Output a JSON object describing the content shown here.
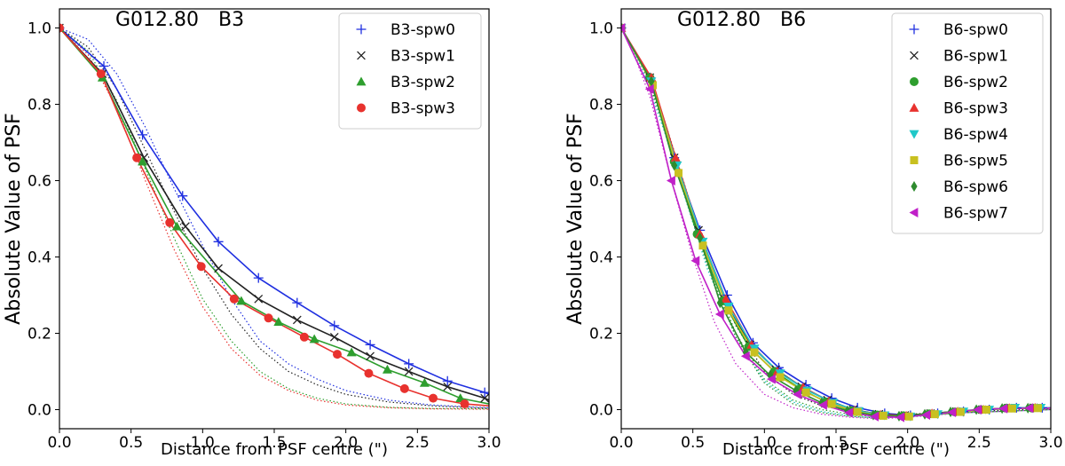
{
  "figure": {
    "description_free": true
  },
  "chart_data": [
    {
      "type": "line",
      "title_field": "G012.80",
      "title_band": "B3",
      "xlabel": "Distance from PSF centre (\")",
      "ylabel": "Absolute Value of PSF",
      "xlim": [
        0.0,
        3.0
      ],
      "ylim": [
        -0.05,
        1.05
      ],
      "xticks": [
        0.0,
        0.5,
        1.0,
        1.5,
        2.0,
        2.5,
        3.0
      ],
      "xtick_labels": [
        "0.0",
        "0.5",
        "1.0",
        "1.5",
        "2.0",
        "2.5",
        "3.0"
      ],
      "yticks": [
        0.0,
        0.2,
        0.4,
        0.6,
        0.8,
        1.0
      ],
      "ytick_labels": [
        "0.0",
        "0.2",
        "0.4",
        "0.6",
        "0.8",
        "1.0"
      ],
      "legend_position": "top-right",
      "series": [
        {
          "name": "B3-spw0",
          "color": "#1f2fe0",
          "marker": "plus",
          "x": [
            0.0,
            0.31,
            0.58,
            0.86,
            1.11,
            1.39,
            1.66,
            1.92,
            2.17,
            2.44,
            2.71,
            2.97,
            3.0
          ],
          "values": [
            1.0,
            0.9,
            0.72,
            0.56,
            0.44,
            0.345,
            0.28,
            0.22,
            0.17,
            0.12,
            0.075,
            0.045,
            0.04
          ],
          "dotted_x": [
            0.0,
            0.2,
            0.4,
            0.6,
            0.8,
            1.0,
            1.2,
            1.4,
            1.6,
            1.8,
            2.0,
            2.3,
            2.6,
            3.0
          ],
          "dotted_values": [
            1.0,
            0.97,
            0.88,
            0.74,
            0.58,
            0.43,
            0.29,
            0.18,
            0.12,
            0.08,
            0.05,
            0.025,
            0.012,
            0.005
          ]
        },
        {
          "name": "B3-spw1",
          "color": "#222222",
          "marker": "x",
          "x": [
            0.0,
            0.3,
            0.59,
            0.88,
            1.11,
            1.39,
            1.66,
            1.92,
            2.17,
            2.44,
            2.71,
            2.97,
            3.0
          ],
          "values": [
            1.0,
            0.88,
            0.66,
            0.48,
            0.37,
            0.29,
            0.235,
            0.19,
            0.14,
            0.1,
            0.06,
            0.03,
            0.025
          ],
          "dotted_x": [
            0.0,
            0.2,
            0.4,
            0.6,
            0.8,
            1.0,
            1.2,
            1.4,
            1.6,
            1.8,
            2.0,
            2.3,
            2.6,
            3.0
          ],
          "dotted_values": [
            1.0,
            0.95,
            0.84,
            0.68,
            0.52,
            0.37,
            0.25,
            0.16,
            0.1,
            0.065,
            0.04,
            0.02,
            0.01,
            0.004
          ]
        },
        {
          "name": "B3-spw2",
          "color": "#2e9e2e",
          "marker": "triangle-up",
          "x": [
            0.0,
            0.3,
            0.58,
            0.82,
            1.27,
            1.53,
            1.78,
            2.04,
            2.29,
            2.55,
            2.8,
            3.0
          ],
          "values": [
            1.0,
            0.87,
            0.65,
            0.48,
            0.285,
            0.23,
            0.185,
            0.15,
            0.105,
            0.07,
            0.03,
            0.015
          ],
          "dotted_x": [
            0.0,
            0.2,
            0.4,
            0.6,
            0.8,
            1.0,
            1.2,
            1.4,
            1.6,
            1.8,
            2.0,
            2.3,
            2.6,
            3.0
          ],
          "dotted_values": [
            1.0,
            0.94,
            0.81,
            0.63,
            0.45,
            0.29,
            0.18,
            0.1,
            0.055,
            0.03,
            0.015,
            0.006,
            0.003,
            0.002
          ]
        },
        {
          "name": "B3-spw3",
          "color": "#e8322e",
          "marker": "circle",
          "x": [
            0.0,
            0.29,
            0.54,
            0.77,
            0.99,
            1.22,
            1.46,
            1.71,
            1.94,
            2.16,
            2.41,
            2.61,
            2.83,
            3.0
          ],
          "values": [
            1.0,
            0.88,
            0.66,
            0.49,
            0.375,
            0.29,
            0.24,
            0.19,
            0.145,
            0.095,
            0.055,
            0.03,
            0.015,
            0.01
          ],
          "dotted_x": [
            0.0,
            0.2,
            0.4,
            0.6,
            0.8,
            1.0,
            1.2,
            1.4,
            1.6,
            1.8,
            2.0,
            2.3,
            2.6,
            3.0
          ],
          "dotted_values": [
            1.0,
            0.93,
            0.79,
            0.6,
            0.42,
            0.27,
            0.16,
            0.09,
            0.05,
            0.025,
            0.012,
            0.005,
            0.002,
            0.001
          ]
        }
      ]
    },
    {
      "type": "line",
      "title_field": "G012.80",
      "title_band": "B6",
      "xlabel": "Distance from PSF centre (\")",
      "ylabel": "Absolute Value of PSF",
      "xlim": [
        0.0,
        3.0
      ],
      "ylim": [
        -0.05,
        1.05
      ],
      "xticks": [
        0.0,
        0.5,
        1.0,
        1.5,
        2.0,
        2.5,
        3.0
      ],
      "xtick_labels": [
        "0.0",
        "0.5",
        "1.0",
        "1.5",
        "2.0",
        "2.5",
        "3.0"
      ],
      "yticks": [
        0.0,
        0.2,
        0.4,
        0.6,
        0.8,
        1.0
      ],
      "ytick_labels": [
        "0.0",
        "0.2",
        "0.4",
        "0.6",
        "0.8",
        "1.0"
      ],
      "legend_position": "top-right",
      "series": [
        {
          "name": "B6-spw0",
          "color": "#1f2fe0",
          "marker": "plus",
          "x": [
            0.0,
            0.2,
            0.37,
            0.55,
            0.74,
            0.92,
            1.1,
            1.29,
            1.47,
            1.65,
            1.84,
            2.02,
            2.21,
            2.39,
            2.57,
            2.76,
            2.94,
            3.0
          ],
          "values": [
            1.0,
            0.87,
            0.66,
            0.47,
            0.3,
            0.175,
            0.11,
            0.065,
            0.03,
            0.005,
            -0.01,
            -0.015,
            -0.01,
            -0.005,
            0.0,
            0.005,
            0.005,
            0.005
          ],
          "dotted_x": [],
          "dotted_values": []
        },
        {
          "name": "B6-spw1",
          "color": "#222222",
          "marker": "x",
          "x": [
            0.0,
            0.2,
            0.37,
            0.54,
            0.72,
            0.9,
            1.08,
            1.26,
            1.44,
            1.62,
            1.8,
            1.98,
            2.16,
            2.34,
            2.52,
            2.7,
            2.88,
            3.0
          ],
          "values": [
            1.0,
            0.87,
            0.66,
            0.47,
            0.29,
            0.17,
            0.105,
            0.06,
            0.025,
            0.0,
            -0.012,
            -0.015,
            -0.01,
            -0.005,
            0.0,
            0.004,
            0.005,
            0.005
          ],
          "dotted_x": [
            0.0,
            0.15,
            0.3,
            0.45,
            0.6,
            0.8,
            1.0,
            1.2,
            1.4,
            1.6,
            1.8,
            2.0,
            2.4,
            3.0
          ],
          "dotted_values": [
            1.0,
            0.9,
            0.76,
            0.58,
            0.4,
            0.22,
            0.1,
            0.04,
            0.01,
            -0.005,
            -0.015,
            -0.012,
            -0.005,
            0.002
          ]
        },
        {
          "name": "B6-spw2",
          "color": "#2e9e2e",
          "marker": "circle",
          "x": [
            0.0,
            0.2,
            0.37,
            0.53,
            0.71,
            0.89,
            1.07,
            1.25,
            1.43,
            1.61,
            1.79,
            1.97,
            2.15,
            2.33,
            2.51,
            2.69,
            2.87,
            3.0
          ],
          "values": [
            1.0,
            0.87,
            0.65,
            0.46,
            0.285,
            0.165,
            0.1,
            0.055,
            0.02,
            -0.003,
            -0.014,
            -0.016,
            -0.011,
            -0.006,
            0.0,
            0.004,
            0.004,
            0.004
          ],
          "dotted_x": [
            0.0,
            0.15,
            0.3,
            0.45,
            0.6,
            0.8,
            1.0,
            1.2,
            1.4,
            1.6,
            1.8,
            2.0,
            2.4,
            3.0
          ],
          "dotted_values": [
            1.0,
            0.9,
            0.75,
            0.57,
            0.39,
            0.2,
            0.08,
            0.025,
            0.0,
            -0.012,
            -0.02,
            -0.018,
            -0.008,
            0.0
          ]
        },
        {
          "name": "B6-spw3",
          "color": "#e8322e",
          "marker": "triangle-up",
          "x": [
            0.0,
            0.21,
            0.38,
            0.55,
            0.73,
            0.91,
            1.09,
            1.27,
            1.45,
            1.63,
            1.81,
            1.99,
            2.17,
            2.35,
            2.53,
            2.71,
            2.89,
            3.0
          ],
          "values": [
            1.0,
            0.87,
            0.66,
            0.46,
            0.29,
            0.17,
            0.1,
            0.058,
            0.022,
            -0.002,
            -0.013,
            -0.016,
            -0.01,
            -0.005,
            0.0,
            0.004,
            0.005,
            0.005
          ],
          "dotted_x": [],
          "dotted_values": []
        },
        {
          "name": "B6-spw4",
          "color": "#20c8c8",
          "marker": "triangle-down",
          "x": [
            0.0,
            0.21,
            0.39,
            0.57,
            0.75,
            0.93,
            1.11,
            1.3,
            1.48,
            1.66,
            1.84,
            2.02,
            2.21,
            2.39,
            2.57,
            2.75,
            2.93,
            3.0
          ],
          "values": [
            1.0,
            0.86,
            0.64,
            0.44,
            0.27,
            0.16,
            0.095,
            0.05,
            0.018,
            -0.004,
            -0.015,
            -0.018,
            -0.012,
            -0.005,
            0.0,
            0.005,
            0.005,
            0.005
          ],
          "dotted_x": [
            0.0,
            0.15,
            0.3,
            0.45,
            0.6,
            0.8,
            1.0,
            1.2,
            1.4,
            1.6,
            1.8,
            2.0,
            2.4,
            3.0
          ],
          "dotted_values": [
            1.0,
            0.89,
            0.73,
            0.55,
            0.37,
            0.19,
            0.075,
            0.02,
            -0.005,
            -0.016,
            -0.022,
            -0.019,
            -0.008,
            0.0
          ]
        },
        {
          "name": "B6-spw5",
          "color": "#c8c020",
          "marker": "square",
          "x": [
            0.0,
            0.22,
            0.4,
            0.57,
            0.75,
            0.93,
            1.11,
            1.29,
            1.47,
            1.65,
            1.83,
            2.01,
            2.19,
            2.37,
            2.55,
            2.73,
            2.91,
            3.0
          ],
          "values": [
            1.0,
            0.85,
            0.62,
            0.43,
            0.26,
            0.15,
            0.085,
            0.045,
            0.015,
            -0.006,
            -0.016,
            -0.018,
            -0.012,
            -0.006,
            0.0,
            0.003,
            0.004,
            0.004
          ],
          "dotted_x": [],
          "dotted_values": []
        },
        {
          "name": "B6-spw6",
          "color": "#2e8b2e",
          "marker": "diamond",
          "x": [
            0.0,
            0.21,
            0.37,
            0.55,
            0.69,
            0.87,
            1.04,
            1.22,
            1.4,
            1.58,
            1.76,
            1.94,
            2.12,
            2.3,
            2.48,
            2.66,
            2.84,
            3.0
          ],
          "values": [
            1.0,
            0.86,
            0.64,
            0.45,
            0.28,
            0.15,
            0.09,
            0.05,
            0.018,
            -0.003,
            -0.014,
            -0.017,
            -0.012,
            -0.006,
            0.0,
            0.003,
            0.004,
            0.004
          ],
          "dotted_x": [
            0.0,
            0.15,
            0.3,
            0.45,
            0.6,
            0.8,
            1.0,
            1.2,
            1.4,
            1.6,
            1.8,
            2.0,
            2.4,
            3.0
          ],
          "dotted_values": [
            1.0,
            0.9,
            0.74,
            0.56,
            0.38,
            0.19,
            0.07,
            0.015,
            -0.008,
            -0.018,
            -0.022,
            -0.018,
            -0.008,
            0.0
          ]
        },
        {
          "name": "B6-spw7",
          "color": "#c020c8",
          "marker": "triangle-left",
          "x": [
            0.0,
            0.2,
            0.35,
            0.52,
            0.69,
            0.87,
            1.05,
            1.23,
            1.41,
            1.59,
            1.77,
            1.95,
            2.13,
            2.31,
            2.49,
            2.67,
            2.85,
            3.0
          ],
          "values": [
            1.0,
            0.84,
            0.6,
            0.39,
            0.25,
            0.14,
            0.08,
            0.04,
            0.012,
            -0.008,
            -0.018,
            -0.02,
            -0.014,
            -0.007,
            0.0,
            0.003,
            0.004,
            0.004
          ],
          "dotted_x": [
            0.0,
            0.1,
            0.2,
            0.35,
            0.5,
            0.65,
            0.8,
            1.0,
            1.2,
            1.4,
            1.6,
            1.8,
            2.0,
            2.4,
            3.0
          ],
          "dotted_values": [
            1.0,
            0.92,
            0.82,
            0.6,
            0.4,
            0.23,
            0.12,
            0.04,
            0.005,
            -0.012,
            -0.02,
            -0.024,
            -0.02,
            -0.008,
            0.0
          ]
        }
      ]
    }
  ]
}
